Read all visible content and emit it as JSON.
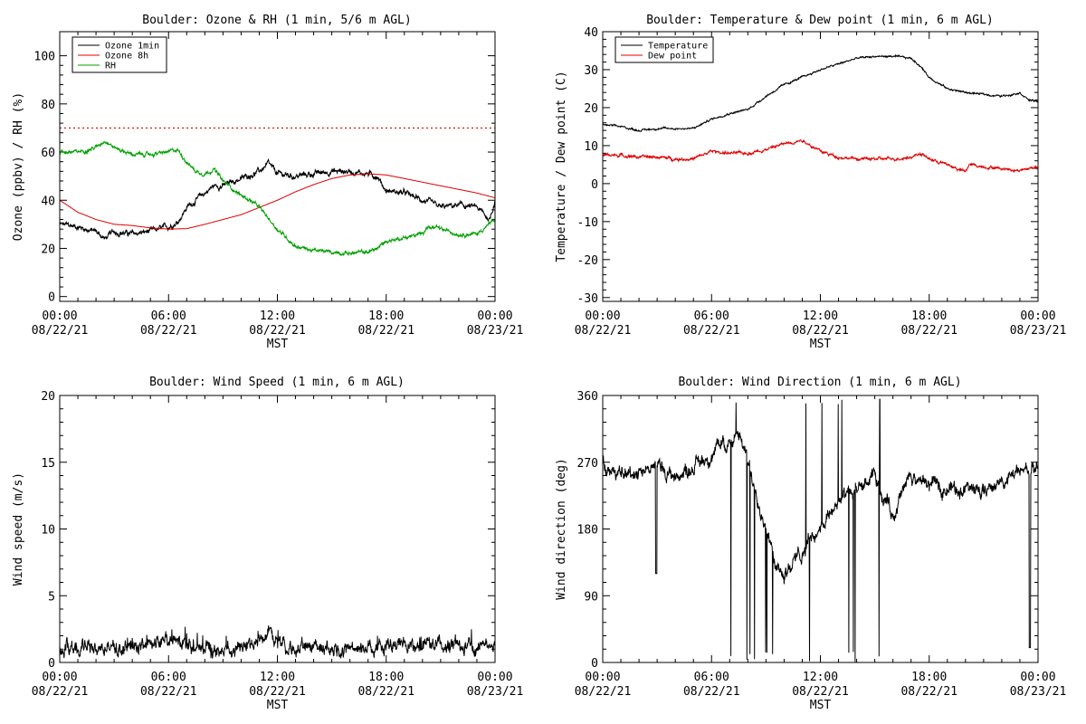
{
  "colors": {
    "black": "#000000",
    "red": "#e00000",
    "green": "#00a000"
  },
  "chart_data": [
    {
      "id": "ozone",
      "type": "line",
      "title": "Boulder: Ozone & RH (1 min, 5/6 m AGL)",
      "ylabel": "Ozone (ppbv) / RH (%)",
      "xlabel": "MST",
      "xlim": [
        0,
        24
      ],
      "ylim": [
        -2,
        110
      ],
      "yticks": [
        "0",
        "20",
        "40",
        "60",
        "80",
        "100"
      ],
      "ytick_values": [
        0,
        20,
        40,
        60,
        80,
        100
      ],
      "reference_line": {
        "y": 70,
        "color": "#e00000",
        "style": "dotted"
      },
      "legend": {
        "position": "top-left"
      },
      "series": [
        {
          "name": "Ozone 1min",
          "color": "#000000",
          "noise": 1.2,
          "x": [
            0,
            1,
            2,
            2.5,
            3,
            4,
            5,
            6,
            6.5,
            7,
            7.5,
            8,
            8.5,
            9,
            10,
            11,
            11.5,
            12,
            13,
            14,
            15,
            16,
            17,
            17.5,
            18,
            19,
            20,
            21,
            22,
            23,
            23.7,
            24
          ],
          "y": [
            30,
            29,
            27,
            24,
            27,
            26,
            27,
            29,
            31,
            37,
            40,
            43,
            46,
            46,
            49,
            52,
            55,
            51,
            50,
            51,
            52,
            52,
            51,
            50,
            44,
            43,
            40,
            37,
            38,
            37,
            32,
            40
          ]
        },
        {
          "name": "Ozone 8h",
          "color": "#e00000",
          "noise": 0,
          "x": [
            0,
            1,
            2,
            3,
            4,
            5,
            6,
            7,
            8,
            9,
            10,
            11,
            12,
            13,
            14,
            15,
            16,
            17,
            18,
            19,
            20,
            21,
            22,
            23,
            24
          ],
          "y": [
            40,
            35,
            32,
            30,
            29.5,
            28.5,
            28,
            28.2,
            30,
            32,
            34,
            37,
            40,
            43.5,
            46.5,
            49,
            50.5,
            51,
            50.5,
            49,
            47.5,
            46,
            44.5,
            43,
            41
          ]
        },
        {
          "name": "RH",
          "color": "#00a000",
          "noise": 0.8,
          "x": [
            0,
            1,
            2,
            2.5,
            3,
            4,
            5,
            6,
            6.5,
            7,
            7.5,
            8,
            8.5,
            9,
            9.5,
            10,
            10.5,
            11,
            12,
            13,
            14,
            15,
            16,
            17,
            17.5,
            18,
            19,
            20,
            20.2,
            21,
            22,
            23,
            24
          ],
          "y": [
            60,
            60,
            62,
            65,
            62,
            59,
            59,
            60,
            61,
            56,
            52,
            51,
            53,
            48,
            45,
            42,
            40,
            37,
            28,
            21,
            19,
            18.5,
            18,
            18.5,
            20,
            23,
            24.5,
            26,
            29,
            28,
            26,
            26,
            32
          ]
        }
      ]
    },
    {
      "id": "temp",
      "type": "line",
      "title": "Boulder: Temperature & Dew point (1 min, 6 m AGL)",
      "ylabel": "Temperature / Dew point (C)",
      "xlabel": "MST",
      "xlim": [
        0,
        24
      ],
      "ylim": [
        -31,
        40
      ],
      "yticks": [
        "-30",
        "-20",
        "-10",
        "0",
        "10",
        "20",
        "30",
        "40"
      ],
      "ytick_values": [
        -30,
        -20,
        -10,
        0,
        10,
        20,
        30,
        40
      ],
      "legend": {
        "position": "top-left"
      },
      "series": [
        {
          "name": "Temperature",
          "color": "#000000",
          "noise": 0.25,
          "x": [
            0,
            1,
            2,
            3,
            4,
            5,
            6,
            7,
            8,
            9,
            10,
            11,
            12,
            13,
            14,
            15,
            16,
            17,
            17.5,
            18,
            19,
            20,
            21,
            22,
            23,
            23.5,
            24
          ],
          "y": [
            15.5,
            15,
            14,
            14.5,
            14.5,
            14.5,
            17,
            18.5,
            19.5,
            23,
            26,
            28,
            30,
            31.5,
            33,
            33.5,
            33.5,
            33,
            31,
            28,
            25,
            24,
            23.5,
            23,
            24,
            22,
            21.5
          ]
        },
        {
          "name": "Dew point",
          "color": "#e00000",
          "noise": 0.4,
          "x": [
            0,
            1,
            2,
            3,
            4,
            5,
            6,
            7,
            8,
            9,
            10,
            11,
            12,
            13,
            14,
            15,
            16,
            17,
            17.5,
            18,
            19,
            20,
            20.2,
            21,
            22,
            23,
            24
          ],
          "y": [
            7.5,
            7.5,
            7,
            7,
            6.5,
            6.5,
            8.5,
            8,
            8,
            9,
            10.5,
            11.5,
            8.5,
            7,
            6.5,
            6.5,
            6.5,
            7,
            8,
            6.5,
            5,
            3,
            5,
            4.5,
            4,
            3.5,
            4.5
          ]
        }
      ]
    },
    {
      "id": "wind",
      "type": "line",
      "title": "Boulder: Wind Speed (1 min, 6 m AGL)",
      "ylabel": "Wind speed (m/s)",
      "xlabel": "MST",
      "xlim": [
        0,
        24
      ],
      "ylim": [
        0,
        20
      ],
      "yticks": [
        "0",
        "5",
        "10",
        "15",
        "20"
      ],
      "ytick_values": [
        0,
        5,
        10,
        15,
        20
      ],
      "series": [
        {
          "name": "",
          "color": "#000000",
          "noise": 0.55,
          "x": [
            0,
            2,
            4,
            5,
            6,
            7,
            8,
            9,
            10,
            11,
            11.5,
            12,
            13,
            14,
            15,
            16,
            17,
            18,
            19,
            20,
            21,
            22,
            23,
            24
          ],
          "y": [
            1.1,
            1.0,
            1.1,
            1.5,
            1.5,
            1.4,
            1.0,
            0.8,
            0.9,
            1.6,
            2.5,
            1.8,
            1.0,
            1.3,
            1.1,
            1.2,
            1.2,
            1.2,
            1.3,
            1.4,
            1.2,
            1.3,
            1.0,
            1.6
          ]
        }
      ]
    },
    {
      "id": "wdir",
      "type": "line",
      "title": "Boulder: Wind Direction (1 min, 6 m AGL)",
      "ylabel": "Wind direction (deg)",
      "xlabel": "MST",
      "xlim": [
        0,
        24
      ],
      "ylim": [
        0,
        360
      ],
      "yticks": [
        "0",
        "90",
        "180",
        "270",
        "360"
      ],
      "ytick_values": [
        0,
        90,
        180,
        270,
        360
      ],
      "series": [
        {
          "name": "",
          "color": "#000000",
          "noise": 10,
          "x": [
            0,
            1,
            2,
            3,
            4,
            5,
            6,
            6.5,
            7,
            7.5,
            8,
            8.5,
            9,
            9.5,
            10,
            11,
            12,
            12.5,
            13,
            14,
            15,
            16,
            17,
            18,
            19,
            20,
            21,
            22,
            23,
            24
          ],
          "y": [
            270,
            250,
            260,
            265,
            250,
            265,
            280,
            290,
            300,
            310,
            270,
            230,
            180,
            140,
            120,
            150,
            180,
            200,
            220,
            230,
            250,
            200,
            250,
            240,
            235,
            235,
            230,
            245,
            255,
            265
          ]
        }
      ]
    }
  ]
}
